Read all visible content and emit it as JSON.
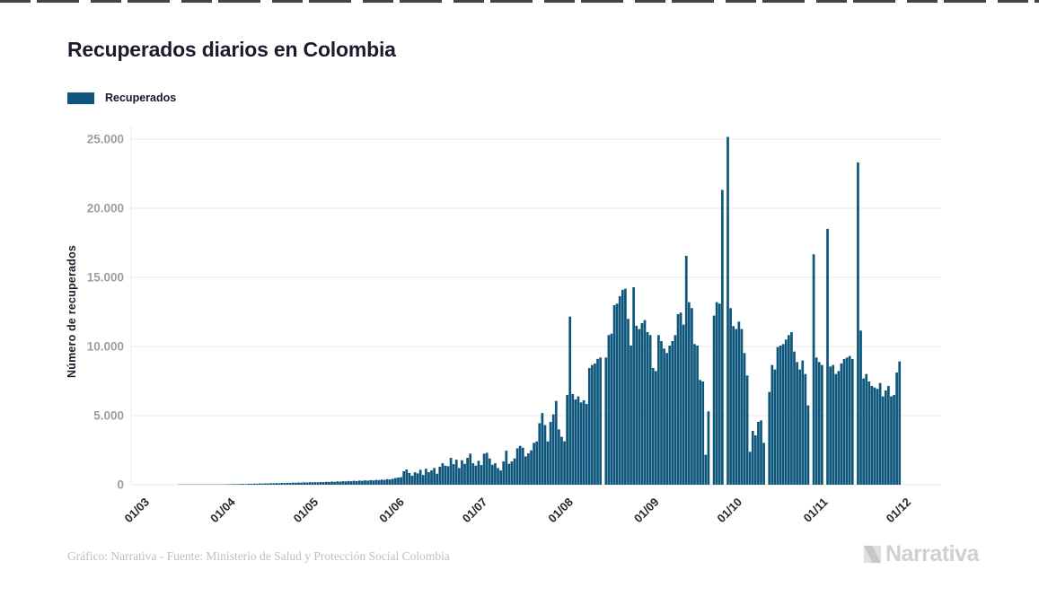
{
  "header": {
    "title": "Recuperados diarios en Colombia"
  },
  "legend": {
    "label": "Recuperados",
    "swatch_color": "#0E567B"
  },
  "footer": {
    "credit": "Gráfico: Narrativa - Fuente: Ministerio de Salud y Protección Social Colombia",
    "logo_text": "Narrativa"
  },
  "chart_data": {
    "type": "bar",
    "title": "Recuperados diarios en Colombia",
    "ylabel": "Número de recuperados",
    "xlabel": "",
    "series_name": "Recuperados",
    "bar_color": "#0E567B",
    "grid_color": "#e9e9e9",
    "axis_label_color": "#9e9e9e",
    "x_tick_color": "#262626",
    "grid": "horizontal",
    "legend_position": "top-left",
    "ylim": [
      0,
      25000
    ],
    "y_ticks": [
      "0",
      "5.000",
      "10.000",
      "15.000",
      "20.000",
      "25.000"
    ],
    "x_ticks": [
      {
        "label": "01/03",
        "day": 0
      },
      {
        "label": "01/04",
        "day": 31
      },
      {
        "label": "01/05",
        "day": 61
      },
      {
        "label": "01/06",
        "day": 92
      },
      {
        "label": "01/07",
        "day": 122
      },
      {
        "label": "01/08",
        "day": 153
      },
      {
        "label": "01/09",
        "day": 184
      },
      {
        "label": "01/10",
        "day": 214
      },
      {
        "label": "01/11",
        "day": 245
      },
      {
        "label": "01/12",
        "day": 275
      }
    ],
    "values": [
      0,
      0,
      0,
      0,
      0,
      0,
      0,
      0,
      0,
      0,
      0,
      0,
      2,
      3,
      2,
      4,
      5,
      6,
      8,
      6,
      10,
      12,
      10,
      15,
      18,
      15,
      20,
      25,
      22,
      30,
      35,
      40,
      45,
      42,
      55,
      60,
      50,
      70,
      65,
      80,
      75,
      90,
      85,
      100,
      95,
      110,
      105,
      120,
      110,
      130,
      120,
      140,
      130,
      150,
      140,
      160,
      150,
      170,
      160,
      180,
      170,
      185,
      175,
      195,
      185,
      210,
      200,
      225,
      210,
      240,
      225,
      255,
      240,
      270,
      250,
      285,
      265,
      300,
      280,
      315,
      295,
      330,
      310,
      350,
      330,
      370,
      350,
      400,
      380,
      430,
      480,
      520,
      550,
      980,
      1100,
      850,
      650,
      900,
      820,
      1080,
      700,
      1150,
      910,
      1040,
      1210,
      800,
      1300,
      1555,
      1380,
      1340,
      1945,
      1490,
      1815,
      1210,
      1770,
      1510,
      1945,
      2245,
      1555,
      1380,
      1730,
      1425,
      2245,
      2310,
      1900,
      1445,
      1555,
      1210,
      1035,
      1685,
      2460,
      1510,
      1685,
      1900,
      2635,
      2810,
      2680,
      2050,
      2270,
      2485,
      3025,
      3130,
      4450,
      5185,
      4320,
      3130,
      4545,
      5090,
      6060,
      4005,
      3465,
      3140,
      6495,
      12165,
      6560,
      6170,
      6390,
      5955,
      6105,
      5845,
      8445,
      8660,
      8770,
      9100,
      9200,
      0,
      9200,
      10825,
      10930,
      12990,
      13100,
      13640,
      14100,
      14180,
      12000,
      10070,
      14290,
      11500,
      11260,
      11690,
      11910,
      11040,
      10825,
      8445,
      8225,
      10825,
      10390,
      9850,
      9525,
      10065,
      10390,
      10825,
      12340,
      12450,
      11580,
      16560,
      13205,
      12775,
      10175,
      10065,
      7580,
      7470,
      2165,
      5305,
      0,
      12235,
      13205,
      13100,
      21330,
      0,
      25160,
      12775,
      11475,
      11260,
      11800,
      11260,
      9525,
      7900,
      2380,
      3895,
      3570,
      4545,
      4655,
      3030,
      0,
      6710,
      8660,
      8335,
      9960,
      10065,
      10175,
      10500,
      10825,
      11040,
      9635,
      8875,
      8335,
      8985,
      8010,
      5735,
      0,
      16670,
      9200,
      8875,
      8660,
      0,
      18510,
      8550,
      8660,
      8010,
      8225,
      8770,
      9095,
      9200,
      9310,
      9095,
      0,
      23315,
      11150,
      7685,
      8010,
      7470,
      7145,
      7035,
      6930,
      7360,
      6385,
      6820,
      7145,
      6390,
      6495,
      8120,
      8920
    ]
  }
}
